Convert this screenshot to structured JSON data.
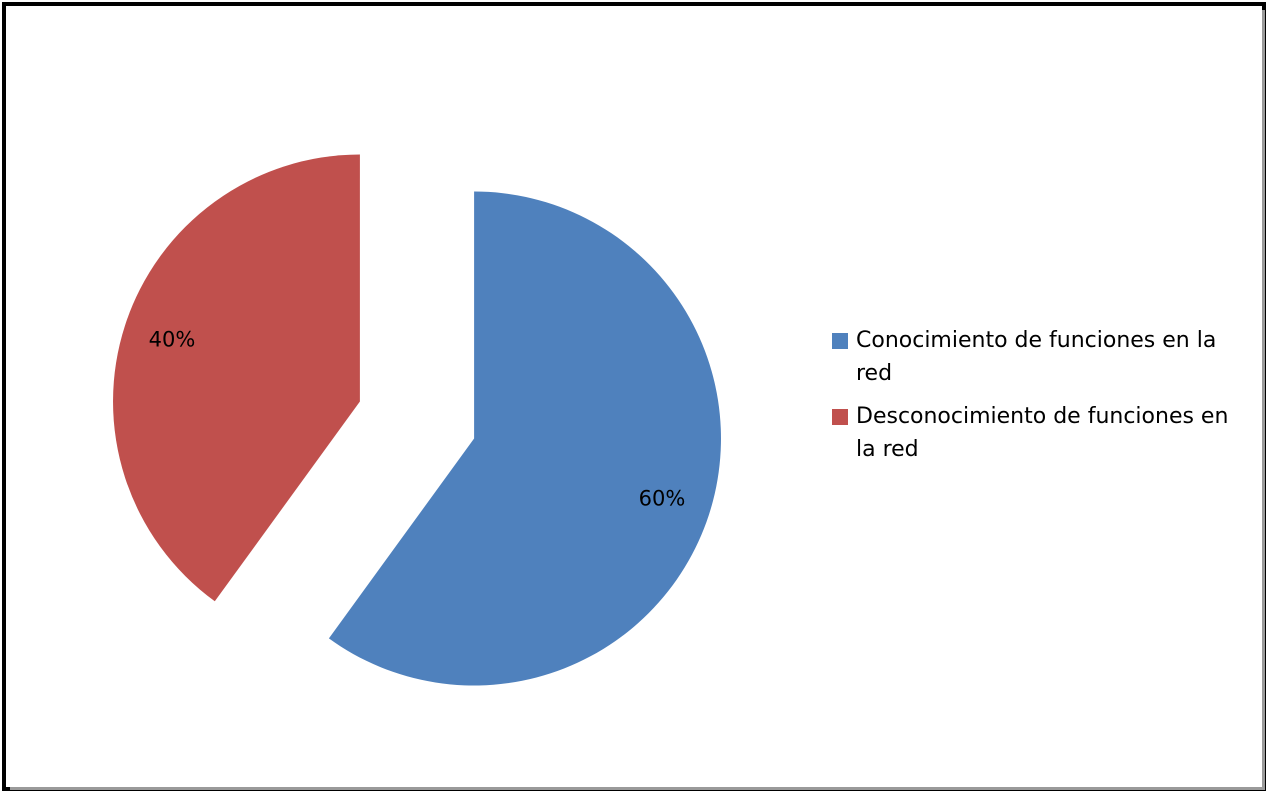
{
  "chart_data": {
    "type": "pie",
    "title": "",
    "slices": [
      {
        "name": "Conocimiento de funciones en la red",
        "value": 60,
        "label": "60%",
        "color": "#4F81BD"
      },
      {
        "name": "Desconocimiento de funciones en la red",
        "value": 40,
        "label": "40%",
        "color": "#C0504D"
      }
    ],
    "legend_placement": "right",
    "exploded": true
  }
}
